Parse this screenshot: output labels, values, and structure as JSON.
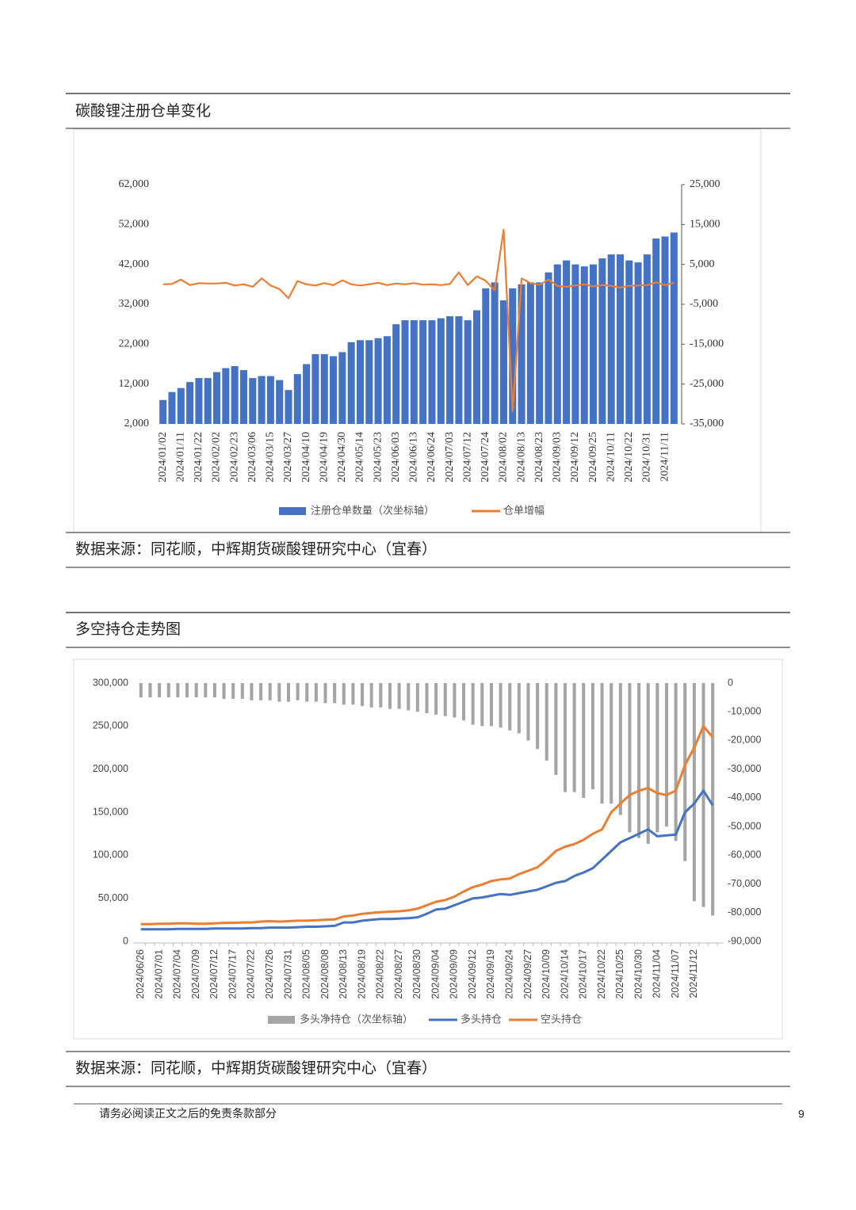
{
  "sections": [
    {
      "title": "碳酸锂注册仓单变化",
      "source": "数据来源：同花顺，中辉期货碳酸锂研究中心（宜春）"
    },
    {
      "title": "多空持仓走势图",
      "source": "数据来源：同花顺，中辉期货碳酸锂研究中心（宜春）"
    }
  ],
  "chart_data": [
    {
      "type": "combo",
      "categories": [
        "2024/01/02",
        null,
        "2024/01/11",
        null,
        "2024/01/22",
        null,
        "2024/02/02",
        null,
        "2024/02/23",
        null,
        "2024/03/06",
        null,
        "2024/03/15",
        null,
        "2024/03/27",
        null,
        "2024/04/10",
        null,
        "2024/04/19",
        null,
        "2024/04/30",
        null,
        "2024/05/14",
        null,
        "2024/05/23",
        null,
        "2024/06/03",
        null,
        "2024/06/13",
        null,
        "2024/06/24",
        null,
        "2024/07/03",
        null,
        "2024/07/12",
        null,
        "2024/07/24",
        null,
        "2024/08/02",
        null,
        "2024/08/13",
        null,
        "2024/08/23",
        null,
        "2024/09/03",
        null,
        "2024/09/12",
        null,
        "2024/09/25",
        null,
        "2024/10/11",
        null,
        "2024/10/22",
        null,
        "2024/10/31",
        null,
        "2024/11/11",
        null
      ],
      "series": [
        {
          "name": "注册仓单数量（次坐标轴）",
          "type": "bar",
          "color": "#4472c4",
          "values": [
            8000,
            10000,
            11000,
            12500,
            13500,
            13500,
            15000,
            16000,
            16500,
            15500,
            13500,
            14000,
            14000,
            13000,
            10500,
            14500,
            17000,
            19500,
            19500,
            19000,
            20000,
            22500,
            23000,
            23000,
            23500,
            24000,
            27000,
            28000,
            28000,
            28000,
            28000,
            28500,
            29000,
            29000,
            28000,
            30500,
            36000,
            37500,
            33000,
            36000,
            37000,
            37500,
            37500,
            40000,
            42000,
            43000,
            42000,
            41500,
            42000,
            43500,
            44500,
            44500,
            43000,
            42500,
            44500,
            48500,
            49000,
            50000
          ]
        },
        {
          "name": "仓单增幅",
          "type": "line",
          "color": "#ed7d31",
          "axis": "y2",
          "values": [
            0,
            100,
            1200,
            -200,
            300,
            200,
            200,
            400,
            -300,
            0,
            -600,
            1500,
            -300,
            -1200,
            -3500,
            800,
            0,
            -300,
            300,
            -200,
            1000,
            0,
            -300,
            0,
            400,
            -200,
            200,
            0,
            300,
            -100,
            0,
            -200,
            100,
            3000,
            -200,
            2000,
            900,
            -1500,
            13700,
            -31900,
            1500,
            300,
            -100,
            1200,
            -400,
            -600,
            -300,
            0,
            -500,
            -200,
            -400,
            -800,
            -400,
            -300,
            -200,
            500,
            -200,
            400
          ]
        }
      ],
      "ylim": [
        2000,
        62000
      ],
      "yticks": [
        {
          "value": 2000,
          "label": "2,000"
        },
        {
          "value": 12000,
          "label": "12,000"
        },
        {
          "value": 22000,
          "label": "22,000"
        },
        {
          "value": 32000,
          "label": "32,000"
        },
        {
          "value": 42000,
          "label": "42,000"
        },
        {
          "value": 52000,
          "label": "52,000"
        },
        {
          "value": 62000,
          "label": "62,000"
        }
      ],
      "y2lim": [
        -35000,
        25000
      ],
      "y2ticks": [
        {
          "value": -35000,
          "label": "-35,000"
        },
        {
          "value": -25000,
          "label": "-25,000"
        },
        {
          "value": -15000,
          "label": "-15,000"
        },
        {
          "value": -5000,
          "label": "-5,000"
        },
        {
          "value": 5000,
          "label": "5,000"
        },
        {
          "value": 15000,
          "label": "15,000"
        },
        {
          "value": 25000,
          "label": "25,000"
        }
      ]
    },
    {
      "type": "combo",
      "categories": [
        "2024/06/26",
        null,
        "2024/07/01",
        null,
        "2024/07/04",
        null,
        "2024/07/09",
        null,
        "2024/07/12",
        null,
        "2024/07/17",
        null,
        "2024/07/22",
        null,
        "2024/07/26",
        null,
        "2024/07/31",
        null,
        "2024/08/05",
        null,
        "2024/08/08",
        null,
        "2024/08/13",
        null,
        "2024/08/19",
        null,
        "2024/08/22",
        null,
        "2024/08/27",
        null,
        "2024/08/30",
        null,
        "2024/09/04",
        null,
        "2024/09/09",
        null,
        "2024/09/12",
        null,
        "2024/09/19",
        null,
        "2024/09/24",
        null,
        "2024/09/27",
        null,
        "2024/10/09",
        null,
        "2024/10/14",
        null,
        "2024/10/17",
        null,
        "2024/10/22",
        null,
        "2024/10/25",
        null,
        "2024/10/30",
        null,
        "2024/11/04",
        null,
        "2024/11/07",
        null,
        "2024/11/12",
        null,
        null
      ],
      "series": [
        {
          "name": "多头净持仓（次坐标轴）",
          "type": "bar",
          "color": "#a5a5a5",
          "axis": "y2",
          "values": [
            -5000,
            -5000,
            -5000,
            -5000,
            -5000,
            -5000,
            -5000,
            -5000,
            -5000,
            -5500,
            -5500,
            -5500,
            -6000,
            -6000,
            -6000,
            -6500,
            -6500,
            -6000,
            -6500,
            -6500,
            -7000,
            -7000,
            -7500,
            -7500,
            -8000,
            -8500,
            -8500,
            -9000,
            -9000,
            -9500,
            -10000,
            -10500,
            -11000,
            -11500,
            -12000,
            -13000,
            -14500,
            -15000,
            -15000,
            -15500,
            -16500,
            -17500,
            -20000,
            -23000,
            -27000,
            -32000,
            -38000,
            -38000,
            -40000,
            -37000,
            -42000,
            -42000,
            -46000,
            -52000,
            -54000,
            -56000,
            -52000,
            -50000,
            -55000,
            -62000,
            -76000,
            -78000,
            -81000
          ]
        },
        {
          "name": "多头持仓",
          "type": "line",
          "color": "#4472c4",
          "values": [
            14000,
            14000,
            14000,
            14000,
            14500,
            14500,
            14500,
            14500,
            15000,
            15000,
            15000,
            15000,
            15500,
            15500,
            16000,
            16000,
            16000,
            16500,
            17000,
            17000,
            17500,
            18000,
            22000,
            22000,
            24000,
            25000,
            26000,
            26000,
            26500,
            27000,
            28000,
            32000,
            37000,
            38000,
            42000,
            46000,
            50000,
            51000,
            53000,
            55000,
            54000,
            56000,
            58000,
            60000,
            64000,
            68000,
            70000,
            76000,
            80000,
            85000,
            95000,
            105000,
            115000,
            120000,
            125000,
            130000,
            122000,
            123000,
            124000,
            150000,
            160000,
            175000,
            158000
          ]
        },
        {
          "name": "空头持仓",
          "type": "line",
          "color": "#ed7d31",
          "values": [
            20000,
            20000,
            20500,
            20500,
            21000,
            21000,
            20500,
            20500,
            21000,
            21500,
            21500,
            22000,
            22000,
            23000,
            23500,
            23000,
            23500,
            24000,
            24000,
            24500,
            25000,
            25500,
            29000,
            30000,
            32000,
            33000,
            34000,
            34500,
            35000,
            36000,
            38000,
            42000,
            46000,
            48000,
            52000,
            58000,
            63000,
            66000,
            70000,
            72000,
            73000,
            78000,
            82000,
            86000,
            95000,
            105000,
            110000,
            113000,
            118000,
            125000,
            130000,
            150000,
            160000,
            170000,
            175000,
            178000,
            172000,
            170000,
            175000,
            205000,
            225000,
            250000,
            237000
          ]
        }
      ],
      "ylim": [
        0,
        300000
      ],
      "yticks": [
        0,
        {
          "value": 50000,
          "label": "50,000"
        },
        {
          "value": 100000,
          "label": "100,000"
        },
        {
          "value": 150000,
          "label": "150,000"
        },
        {
          "value": 200000,
          "label": "200,000"
        },
        {
          "value": 250000,
          "label": "250,000"
        },
        {
          "value": 300000,
          "label": "300,000"
        }
      ],
      "y2lim": [
        -90000,
        0
      ],
      "y2ticks": [
        {
          "value": -90000,
          "label": "-90,000"
        },
        {
          "value": -80000,
          "label": "-80,000"
        },
        {
          "value": -70000,
          "label": "-70,000"
        },
        {
          "value": -60000,
          "label": "-60,000"
        },
        {
          "value": -50000,
          "label": "-50,000"
        },
        {
          "value": -40000,
          "label": "-40,000"
        },
        {
          "value": -30000,
          "label": "-30,000"
        },
        {
          "value": -20000,
          "label": "-20,000"
        },
        {
          "value": -10000,
          "label": "-10,000"
        },
        0
      ]
    }
  ],
  "footer": {
    "disclaimer": "请务必阅读正文之后的免责条款部分",
    "page_number": 9
  }
}
